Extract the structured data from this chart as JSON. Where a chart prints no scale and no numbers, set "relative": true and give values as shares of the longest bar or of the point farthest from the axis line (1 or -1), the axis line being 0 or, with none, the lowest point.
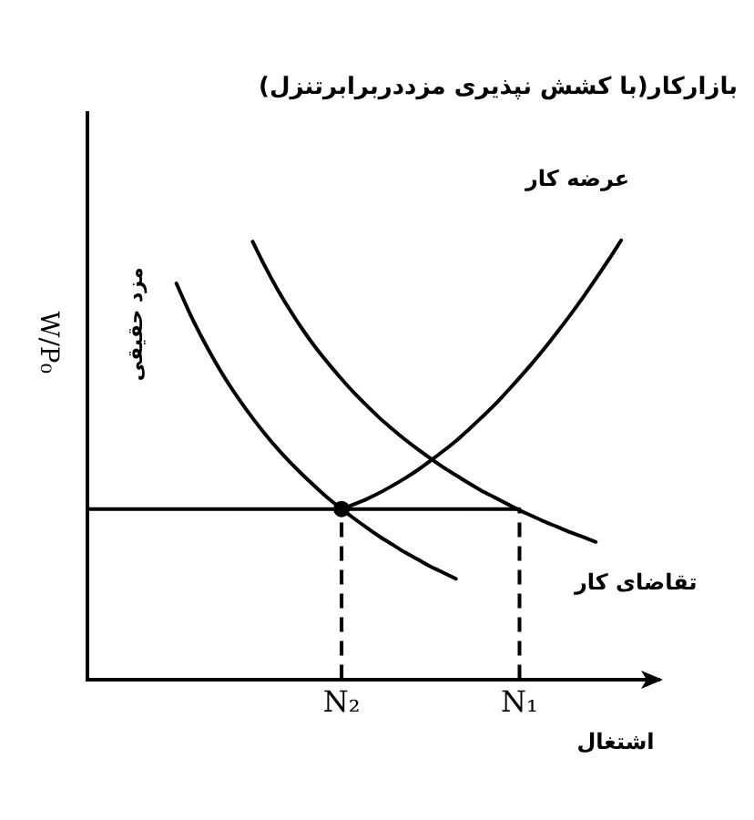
{
  "chart_data": {
    "type": "line",
    "title": "بازارکار(با کشش نپذیری مزددربرابرتنزل)",
    "xlabel": "اشتغال",
    "ylabel": "W/P₀",
    "annotations": [
      "مزد حقیقی"
    ],
    "relative": true,
    "marker": "none",
    "categories": [
      null,
      null,
      null,
      null,
      null,
      null,
      null,
      null,
      null,
      null,
      null,
      null,
      null,
      null,
      null,
      null,
      null,
      null,
      null,
      null,
      "N₂",
      null,
      null,
      null,
      null,
      null,
      null,
      null,
      null,
      null,
      null,
      null,
      null,
      null,
      "N₁",
      null,
      null,
      null,
      null,
      null,
      null,
      null,
      null,
      null,
      null,
      null
    ],
    "ref_lines": [
      {
        "axis": "x",
        "value": "N₁",
        "color": "#000000",
        "line_style": "dashed"
      }
    ],
    "series": [
      {
        "name": "عرضه کار",
        "color": "#000000",
        "values": [
          null,
          null,
          null,
          null,
          null,
          null,
          null,
          null,
          null,
          null,
          null,
          null,
          null,
          null,
          null,
          null,
          null,
          null,
          null,
          null,
          0.388,
          0.399,
          0.411,
          0.425,
          0.441,
          0.458,
          0.477,
          0.498,
          0.52,
          0.543,
          0.569,
          0.596,
          0.624,
          0.655,
          0.687,
          0.72,
          0.755,
          0.792,
          0.83,
          0.87,
          0.912,
          0.955,
          1.0,
          null,
          null,
          null
        ]
      },
      {
        "name": "تقاضای کار",
        "color": "#000000",
        "values": [
          null,
          null,
          null,
          null,
          null,
          null,
          null,
          null,
          null,
          null,
          null,
          null,
          null,
          0.997,
          0.939,
          0.886,
          0.838,
          0.794,
          0.754,
          0.718,
          0.684,
          0.652,
          0.623,
          0.595,
          0.57,
          0.546,
          0.524,
          0.503,
          0.483,
          0.465,
          0.447,
          0.43,
          0.415,
          0.4,
          0.385,
          0.372,
          0.359,
          0.347,
          0.335,
          0.324,
          0.313,
          null,
          null,
          null,
          null,
          null
        ]
      },
      {
        "color": "#000000",
        "values": [
          null,
          null,
          null,
          null,
          null,
          null,
          null,
          0.902,
          0.837,
          0.779,
          0.726,
          0.678,
          0.635,
          0.595,
          0.558,
          0.524,
          0.493,
          0.464,
          0.437,
          0.411,
          0.388,
          0.366,
          0.345,
          0.325,
          0.307,
          0.289,
          0.273,
          0.257,
          0.243,
          0.229,
          null,
          null,
          null,
          null,
          null,
          null,
          null,
          null,
          null,
          null,
          null,
          null,
          null,
          null,
          null,
          null
        ]
      },
      {
        "color": "#000000",
        "values": [
          0.388,
          0.388,
          0.388,
          0.388,
          0.388,
          0.388,
          0.388,
          0.388,
          0.388,
          0.388,
          0.388,
          0.388,
          0.388,
          0.388,
          0.388,
          0.388,
          0.388,
          0.388,
          0.388,
          0.388,
          0.388,
          0.388,
          0.388,
          0.388,
          0.388,
          0.388,
          0.388,
          0.388,
          0.388,
          0.388,
          0.388,
          0.388,
          0.388,
          0.388,
          0.388,
          null,
          null,
          null,
          null,
          null,
          null,
          null,
          null,
          null,
          null,
          null
        ]
      },
      {
        "type": "lollipop",
        "color": "#000000",
        "line_style": "dashed",
        "marker": "circle",
        "values": [
          null,
          null,
          null,
          null,
          null,
          null,
          null,
          null,
          null,
          null,
          null,
          null,
          null,
          null,
          null,
          null,
          null,
          null,
          null,
          null,
          0.388,
          null,
          null,
          null,
          null,
          null,
          null,
          null,
          null,
          null,
          null,
          null,
          null,
          null,
          null,
          null,
          null,
          null,
          null,
          null,
          null,
          null,
          null,
          null,
          null,
          null
        ]
      }
    ]
  }
}
